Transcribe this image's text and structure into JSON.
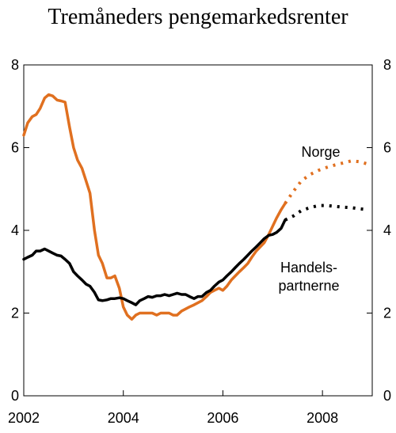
{
  "chart_data": {
    "type": "line",
    "title": "Tremåneders pengemarkedsrenter",
    "xlim": [
      2002.0,
      2009.0
    ],
    "ylim": [
      0,
      8
    ],
    "x_ticks": [
      2002,
      2004,
      2006,
      2008
    ],
    "y_ticks": [
      0,
      2,
      4,
      6,
      8
    ],
    "grid": false,
    "legend": "none",
    "series": [
      {
        "name": "Norge",
        "color": "#E07020",
        "style": "solid",
        "points": [
          [
            2002.0,
            6.3
          ],
          [
            2002.08,
            6.6
          ],
          [
            2002.17,
            6.75
          ],
          [
            2002.25,
            6.8
          ],
          [
            2002.33,
            6.95
          ],
          [
            2002.42,
            7.2
          ],
          [
            2002.5,
            7.28
          ],
          [
            2002.58,
            7.25
          ],
          [
            2002.67,
            7.15
          ],
          [
            2002.75,
            7.13
          ],
          [
            2002.83,
            7.1
          ],
          [
            2002.92,
            6.5
          ],
          [
            2003.0,
            6.0
          ],
          [
            2003.08,
            5.7
          ],
          [
            2003.17,
            5.5
          ],
          [
            2003.25,
            5.2
          ],
          [
            2003.33,
            4.9
          ],
          [
            2003.42,
            4.0
          ],
          [
            2003.5,
            3.4
          ],
          [
            2003.58,
            3.2
          ],
          [
            2003.67,
            2.85
          ],
          [
            2003.75,
            2.85
          ],
          [
            2003.83,
            2.9
          ],
          [
            2003.92,
            2.6
          ],
          [
            2004.0,
            2.15
          ],
          [
            2004.08,
            1.95
          ],
          [
            2004.17,
            1.85
          ],
          [
            2004.25,
            1.95
          ],
          [
            2004.33,
            2.0
          ],
          [
            2004.42,
            2.0
          ],
          [
            2004.5,
            2.0
          ],
          [
            2004.58,
            2.0
          ],
          [
            2004.67,
            1.95
          ],
          [
            2004.75,
            2.0
          ],
          [
            2004.83,
            2.0
          ],
          [
            2004.92,
            2.0
          ],
          [
            2005.0,
            1.95
          ],
          [
            2005.08,
            1.95
          ],
          [
            2005.17,
            2.05
          ],
          [
            2005.25,
            2.1
          ],
          [
            2005.33,
            2.15
          ],
          [
            2005.42,
            2.2
          ],
          [
            2005.5,
            2.25
          ],
          [
            2005.58,
            2.3
          ],
          [
            2005.67,
            2.4
          ],
          [
            2005.75,
            2.5
          ],
          [
            2005.83,
            2.55
          ],
          [
            2005.92,
            2.6
          ],
          [
            2006.0,
            2.55
          ],
          [
            2006.08,
            2.65
          ],
          [
            2006.17,
            2.8
          ],
          [
            2006.25,
            2.9
          ],
          [
            2006.33,
            3.0
          ],
          [
            2006.42,
            3.1
          ],
          [
            2006.5,
            3.2
          ],
          [
            2006.58,
            3.35
          ],
          [
            2006.67,
            3.5
          ],
          [
            2006.75,
            3.6
          ],
          [
            2006.83,
            3.7
          ],
          [
            2006.92,
            3.9
          ],
          [
            2007.0,
            4.1
          ],
          [
            2007.08,
            4.3
          ],
          [
            2007.17,
            4.5
          ],
          [
            2007.25,
            4.65
          ]
        ]
      },
      {
        "name": "Norge",
        "color": "#E07020",
        "style": "dotted",
        "points": [
          [
            2007.25,
            4.65
          ],
          [
            2007.42,
            4.95
          ],
          [
            2007.58,
            5.2
          ],
          [
            2007.75,
            5.35
          ],
          [
            2007.92,
            5.45
          ],
          [
            2008.08,
            5.52
          ],
          [
            2008.25,
            5.58
          ],
          [
            2008.42,
            5.63
          ],
          [
            2008.58,
            5.68
          ],
          [
            2008.75,
            5.66
          ],
          [
            2008.92,
            5.6
          ]
        ]
      },
      {
        "name": "Handelspartnerne",
        "color": "#000000",
        "style": "solid",
        "points": [
          [
            2002.0,
            3.3
          ],
          [
            2002.08,
            3.35
          ],
          [
            2002.17,
            3.4
          ],
          [
            2002.25,
            3.5
          ],
          [
            2002.33,
            3.5
          ],
          [
            2002.42,
            3.55
          ],
          [
            2002.5,
            3.5
          ],
          [
            2002.58,
            3.45
          ],
          [
            2002.67,
            3.4
          ],
          [
            2002.75,
            3.38
          ],
          [
            2002.83,
            3.3
          ],
          [
            2002.92,
            3.2
          ],
          [
            2003.0,
            3.0
          ],
          [
            2003.08,
            2.9
          ],
          [
            2003.17,
            2.8
          ],
          [
            2003.25,
            2.7
          ],
          [
            2003.33,
            2.65
          ],
          [
            2003.42,
            2.5
          ],
          [
            2003.5,
            2.32
          ],
          [
            2003.58,
            2.3
          ],
          [
            2003.67,
            2.32
          ],
          [
            2003.75,
            2.35
          ],
          [
            2003.83,
            2.35
          ],
          [
            2003.92,
            2.37
          ],
          [
            2004.0,
            2.35
          ],
          [
            2004.08,
            2.3
          ],
          [
            2004.17,
            2.25
          ],
          [
            2004.25,
            2.2
          ],
          [
            2004.33,
            2.3
          ],
          [
            2004.42,
            2.35
          ],
          [
            2004.5,
            2.4
          ],
          [
            2004.58,
            2.38
          ],
          [
            2004.67,
            2.42
          ],
          [
            2004.75,
            2.42
          ],
          [
            2004.83,
            2.45
          ],
          [
            2004.92,
            2.42
          ],
          [
            2005.0,
            2.45
          ],
          [
            2005.08,
            2.48
          ],
          [
            2005.17,
            2.45
          ],
          [
            2005.25,
            2.45
          ],
          [
            2005.33,
            2.4
          ],
          [
            2005.42,
            2.35
          ],
          [
            2005.5,
            2.4
          ],
          [
            2005.58,
            2.4
          ],
          [
            2005.67,
            2.5
          ],
          [
            2005.75,
            2.55
          ],
          [
            2005.83,
            2.65
          ],
          [
            2005.92,
            2.75
          ],
          [
            2006.0,
            2.8
          ],
          [
            2006.08,
            2.9
          ],
          [
            2006.17,
            3.0
          ],
          [
            2006.25,
            3.1
          ],
          [
            2006.33,
            3.2
          ],
          [
            2006.42,
            3.3
          ],
          [
            2006.5,
            3.4
          ],
          [
            2006.58,
            3.5
          ],
          [
            2006.67,
            3.6
          ],
          [
            2006.75,
            3.7
          ],
          [
            2006.83,
            3.8
          ],
          [
            2006.92,
            3.88
          ],
          [
            2007.0,
            3.9
          ],
          [
            2007.08,
            3.95
          ],
          [
            2007.17,
            4.05
          ],
          [
            2007.25,
            4.25
          ]
        ]
      },
      {
        "name": "Handelspartnerne",
        "color": "#000000",
        "style": "dotted",
        "points": [
          [
            2007.25,
            4.25
          ],
          [
            2007.42,
            4.35
          ],
          [
            2007.58,
            4.48
          ],
          [
            2007.75,
            4.55
          ],
          [
            2007.92,
            4.6
          ],
          [
            2008.08,
            4.6
          ],
          [
            2008.25,
            4.58
          ],
          [
            2008.42,
            4.56
          ],
          [
            2008.58,
            4.55
          ],
          [
            2008.75,
            4.52
          ],
          [
            2008.92,
            4.5
          ]
        ]
      }
    ],
    "annotations": [
      {
        "text": "Norge",
        "series": "Norge"
      },
      {
        "text": "Handels-",
        "series": "Handelspartnerne"
      },
      {
        "text": "partnerne",
        "series": "Handelspartnerne"
      }
    ]
  }
}
